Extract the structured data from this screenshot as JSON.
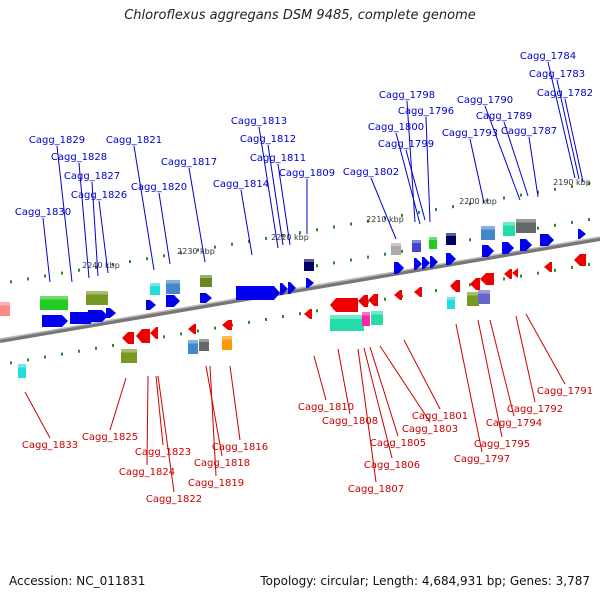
{
  "title": "Chloroflexus aggregans DSM 9485, complete genome",
  "footer": {
    "accession": "Accession: NC_011831",
    "info": "Topology: circular; Length: 4,684,931 bp; Genes: 3,787"
  },
  "colors": {
    "forward_label": "#0000cc",
    "reverse_label": "#cc0000",
    "backbone": "#888888",
    "tick": "#22aa22",
    "forward_arrow": "#0000ee",
    "reverse_arrow": "#ee0000"
  },
  "scale_labels": [
    "2190 kbp",
    "2200 kbp",
    "2210 kbp",
    "2220 kbp",
    "2230 kbp",
    "2240 kbp"
  ],
  "forward_genes": [
    "Cagg_1784",
    "Cagg_1783",
    "Cagg_1782",
    "Cagg_1798",
    "Cagg_1790",
    "Cagg_1796",
    "Cagg_1789",
    "Cagg_1800",
    "Cagg_1793",
    "Cagg_1787",
    "Cagg_1799",
    "Cagg_1813",
    "Cagg_1812",
    "Cagg_1811",
    "Cagg_1809",
    "Cagg_1802",
    "Cagg_1821",
    "Cagg_1829",
    "Cagg_1828",
    "Cagg_1827",
    "Cagg_1826",
    "Cagg_1820",
    "Cagg_1817",
    "Cagg_1814",
    "Cagg_1830"
  ],
  "reverse_genes": [
    "Cagg_1833",
    "Cagg_1825",
    "Cagg_1824",
    "Cagg_1823",
    "Cagg_1822",
    "Cagg_1818",
    "Cagg_1819",
    "Cagg_1816",
    "Cagg_1810",
    "Cagg_1808",
    "Cagg_1807",
    "Cagg_1806",
    "Cagg_1805",
    "Cagg_1803",
    "Cagg_1801",
    "Cagg_1797",
    "Cagg_1795",
    "Cagg_1794",
    "Cagg_1792",
    "Cagg_1791"
  ]
}
